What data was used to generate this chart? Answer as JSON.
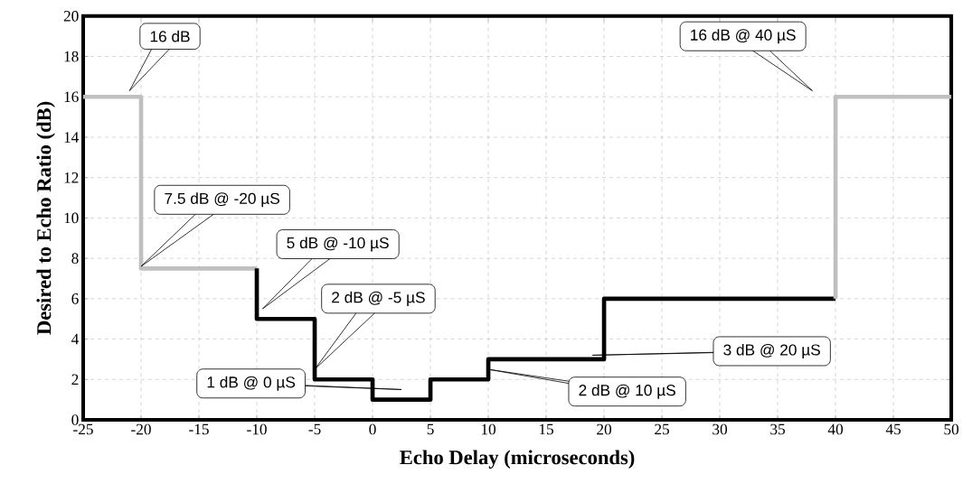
{
  "chart_data": {
    "type": "line",
    "xlabel": "Echo Delay (microseconds)",
    "ylabel": "Desired to Echo Ratio (dB)",
    "xlim": [
      -25,
      50
    ],
    "xticks": [
      -25,
      -20,
      -15,
      -10,
      -5,
      0,
      5,
      10,
      15,
      20,
      25,
      30,
      35,
      40,
      45,
      50
    ],
    "ylim": [
      0,
      20
    ],
    "yticks": [
      0,
      2,
      4,
      6,
      8,
      10,
      12,
      14,
      16,
      18,
      20
    ],
    "grid": true,
    "marker": "none",
    "series": [
      {
        "color": "#c0c0c0",
        "x": [
          -25,
          -20,
          -20,
          -10
        ],
        "values": [
          16,
          16,
          7.5,
          7.5
        ]
      },
      {
        "color": "#000000",
        "x": [
          -10,
          -10,
          -5,
          -5,
          0,
          0,
          5,
          5,
          10,
          10,
          20,
          20,
          40
        ],
        "values": [
          7.5,
          5,
          5,
          2,
          2,
          1,
          1,
          2,
          2,
          3,
          3,
          6,
          6
        ]
      },
      {
        "color": "#c0c0c0",
        "x": [
          40,
          40,
          50
        ],
        "values": [
          6,
          16,
          16
        ]
      }
    ],
    "annotations": [
      "16 dB",
      "16 dB @ 40 µS",
      "7.5 dB @ -20 µS",
      "5 dB @ -10 µS",
      "2 dB @ -5 µS",
      "1 dB @ 0 µS",
      "2 dB @ 10 µS",
      "3 dB @ 20 µS"
    ]
  }
}
